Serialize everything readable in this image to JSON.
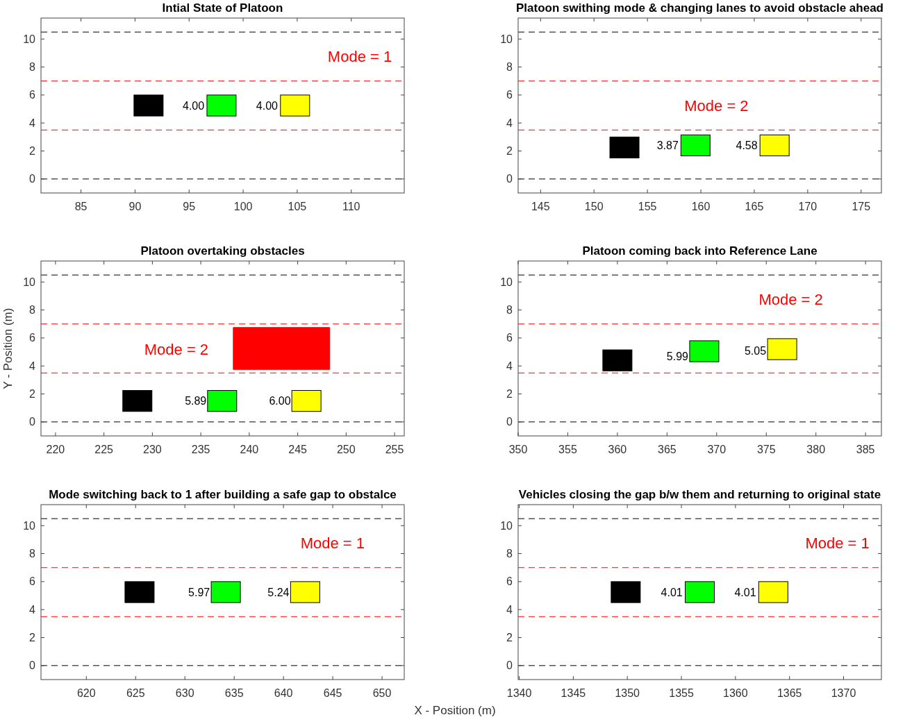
{
  "chart_data": [
    {
      "type": "bar",
      "title": "Intial State of Platoon",
      "xlim": [
        81.3,
        114.9
      ],
      "xticks": [
        85,
        90,
        95,
        100,
        105,
        110
      ],
      "ylim": [
        -1,
        11.5
      ],
      "yticks": [
        0,
        2,
        4,
        6,
        8,
        10
      ],
      "series": [
        {
          "color": "#000000",
          "x": [
            91.25
          ],
          "base": [
            4.5
          ],
          "values": [
            1.5
          ]
        },
        {
          "color": "#00ff00",
          "x": [
            98
          ],
          "base": [
            4.5
          ],
          "values": [
            1.5
          ]
        },
        {
          "color": "#ffff00",
          "x": [
            104.8
          ],
          "base": [
            4.5
          ],
          "values": [
            1.5
          ]
        }
      ],
      "ref_lines": [
        {
          "axis": "y",
          "value": 0,
          "color": "#000000",
          "line_style": "dashed"
        },
        {
          "axis": "y",
          "value": 3.5,
          "color": "#ff0000",
          "line_style": "dashed"
        },
        {
          "axis": "y",
          "value": 7,
          "color": "#ff0000",
          "line_style": "dashed"
        },
        {
          "axis": "y",
          "value": 10.5,
          "color": "#000000",
          "line_style": "dashed"
        }
      ],
      "annotations": [
        "Mode = 1",
        {
          "text": "4.00",
          "x": 96.6,
          "y": 5.25
        },
        {
          "text": "4.00",
          "x": 103.4,
          "y": 5.25
        }
      ]
    },
    {
      "type": "bar",
      "title": "Platoon swithing mode  & changing lanes to avoid obstacle ahead",
      "xlim": [
        142.9,
        176.9
      ],
      "xticks": [
        145,
        150,
        155,
        160,
        165,
        170,
        175
      ],
      "ylim": [
        -1,
        11.5
      ],
      "yticks": [
        0,
        2,
        4,
        6,
        8,
        10
      ],
      "series": [
        {
          "color": "#000000",
          "x": [
            152.85
          ],
          "base": [
            1.5
          ],
          "values": [
            1.5
          ]
        },
        {
          "color": "#00ff00",
          "x": [
            159.5
          ],
          "base": [
            1.65
          ],
          "values": [
            1.5
          ]
        },
        {
          "color": "#ffff00",
          "x": [
            166.9
          ],
          "base": [
            1.65
          ],
          "values": [
            1.5
          ]
        }
      ],
      "ref_lines": [
        {
          "axis": "y",
          "value": 0,
          "color": "#000000",
          "line_style": "dashed"
        },
        {
          "axis": "y",
          "value": 3.5,
          "color": "#ff0000",
          "line_style": "dashed"
        },
        {
          "axis": "y",
          "value": 7,
          "color": "#ff0000",
          "line_style": "dashed"
        },
        {
          "axis": "y",
          "value": 10.5,
          "color": "#000000",
          "line_style": "dashed"
        }
      ],
      "annotations": [
        "Mode = 2",
        {
          "text": "3.87",
          "x": 158.1,
          "y": 2.4
        },
        {
          "text": "4.58",
          "x": 165.5,
          "y": 2.4
        }
      ]
    },
    {
      "type": "bar",
      "title": "Platoon overtaking obstacles",
      "ylabel": "Y - Position (m)",
      "xlim": [
        218.5,
        256
      ],
      "xticks": [
        220,
        225,
        230,
        235,
        240,
        245,
        250,
        255
      ],
      "ylim": [
        -1,
        11.5
      ],
      "yticks": [
        0,
        2,
        4,
        6,
        8,
        10
      ],
      "series": [
        {
          "color": "#000000",
          "x": [
            228.45
          ],
          "base": [
            0.75
          ],
          "values": [
            1.5
          ]
        },
        {
          "color": "#00ff00",
          "x": [
            237.2
          ],
          "base": [
            0.75
          ],
          "values": [
            1.5
          ]
        },
        {
          "color": "#ffff00",
          "x": [
            245.9
          ],
          "base": [
            0.75
          ],
          "values": [
            1.5
          ]
        },
        {
          "type": "area",
          "color": "#ff0000",
          "x": [
            238.35,
            238.35,
            248.3,
            248.3
          ],
          "values": [
            3.75,
            6.75,
            6.75,
            3.75
          ]
        }
      ],
      "ref_lines": [
        {
          "axis": "y",
          "value": 0,
          "color": "#000000",
          "line_style": "dashed"
        },
        {
          "axis": "y",
          "value": 3.5,
          "color": "#ff0000",
          "line_style": "dashed"
        },
        {
          "axis": "y",
          "value": 7,
          "color": "#ff0000",
          "line_style": "dashed"
        },
        {
          "axis": "y",
          "value": 10.5,
          "color": "#000000",
          "line_style": "dashed"
        }
      ],
      "annotations": [
        "Mode = 2",
        {
          "text": "5.89",
          "x": 235.8,
          "y": 1.5
        },
        {
          "text": "6.00",
          "x": 244.5,
          "y": 1.5
        }
      ]
    },
    {
      "type": "bar",
      "title": "Platoon coming back into Reference Lane",
      "xlim": [
        350,
        386.6
      ],
      "xticks": [
        350,
        355,
        360,
        365,
        370,
        375,
        380,
        385
      ],
      "ylim": [
        -1,
        11.5
      ],
      "yticks": [
        0,
        2,
        4,
        6,
        8,
        10
      ],
      "series": [
        {
          "color": "#000000",
          "x": [
            360
          ],
          "base": [
            3.65
          ],
          "values": [
            1.5
          ]
        },
        {
          "color": "#00ff00",
          "x": [
            368.75
          ],
          "base": [
            4.3
          ],
          "values": [
            1.5
          ]
        },
        {
          "color": "#ffff00",
          "x": [
            376.6
          ],
          "base": [
            4.45
          ],
          "values": [
            1.5
          ]
        }
      ],
      "ref_lines": [
        {
          "axis": "y",
          "value": 0,
          "color": "#000000",
          "line_style": "dashed"
        },
        {
          "axis": "y",
          "value": 3.5,
          "color": "#ff0000",
          "line_style": "dashed"
        },
        {
          "axis": "y",
          "value": 7,
          "color": "#ff0000",
          "line_style": "dashed"
        },
        {
          "axis": "y",
          "value": 10.5,
          "color": "#000000",
          "line_style": "dashed"
        }
      ],
      "annotations": [
        "Mode = 2",
        {
          "text": "5.99",
          "x": 367.35,
          "y": 4.7
        },
        {
          "text": "5.05",
          "x": 375.2,
          "y": 5.1
        }
      ]
    },
    {
      "type": "bar",
      "title": "Mode switching back to 1 after building a safe gap to obstalce",
      "xlabel": "X - Position (m)",
      "xlim": [
        615.4,
        652.25
      ],
      "xticks": [
        620,
        625,
        630,
        635,
        640,
        645,
        650
      ],
      "ylim": [
        -1,
        11.5
      ],
      "yticks": [
        0,
        2,
        4,
        6,
        8,
        10
      ],
      "series": [
        {
          "color": "#000000",
          "x": [
            625.4
          ],
          "base": [
            4.5
          ],
          "values": [
            1.5
          ]
        },
        {
          "color": "#00ff00",
          "x": [
            634.15
          ],
          "base": [
            4.5
          ],
          "values": [
            1.5
          ]
        },
        {
          "color": "#ffff00",
          "x": [
            642.2
          ],
          "base": [
            4.5
          ],
          "values": [
            1.5
          ]
        }
      ],
      "ref_lines": [
        {
          "axis": "y",
          "value": 0,
          "color": "#000000",
          "line_style": "dashed"
        },
        {
          "axis": "y",
          "value": 3.5,
          "color": "#ff0000",
          "line_style": "dashed"
        },
        {
          "axis": "y",
          "value": 7,
          "color": "#ff0000",
          "line_style": "dashed"
        },
        {
          "axis": "y",
          "value": 10.5,
          "color": "#000000",
          "line_style": "dashed"
        }
      ],
      "annotations": [
        "Mode = 1",
        {
          "text": "5.97",
          "x": 632.75,
          "y": 5.25
        },
        {
          "text": "5.24",
          "x": 640.8,
          "y": 5.25
        }
      ]
    },
    {
      "type": "bar",
      "title": "Vehicles closing the gap b/w them and returning to original state",
      "xlim": [
        1339.9,
        1373.5
      ],
      "xticks": [
        1340,
        1345,
        1350,
        1355,
        1360,
        1365,
        1370
      ],
      "ylim": [
        -1,
        11.5
      ],
      "yticks": [
        0,
        2,
        4,
        6,
        8,
        10
      ],
      "series": [
        {
          "color": "#000000",
          "x": [
            1349.85
          ],
          "base": [
            4.5
          ],
          "values": [
            1.5
          ]
        },
        {
          "color": "#00ff00",
          "x": [
            1356.7
          ],
          "base": [
            4.5
          ],
          "values": [
            1.5
          ]
        },
        {
          "color": "#ffff00",
          "x": [
            1363.5
          ],
          "base": [
            4.5
          ],
          "values": [
            1.5
          ]
        }
      ],
      "ref_lines": [
        {
          "axis": "y",
          "value": 0,
          "color": "#000000",
          "line_style": "dashed"
        },
        {
          "axis": "y",
          "value": 3.5,
          "color": "#ff0000",
          "line_style": "dashed"
        },
        {
          "axis": "y",
          "value": 7,
          "color": "#ff0000",
          "line_style": "dashed"
        },
        {
          "axis": "y",
          "value": 10.5,
          "color": "#000000",
          "line_style": "dashed"
        }
      ],
      "annotations": [
        "Mode = 1",
        {
          "text": "4.01",
          "x": 1355.3,
          "y": 5.25
        },
        {
          "text": "4.01",
          "x": 1362.1,
          "y": 5.25
        }
      ]
    }
  ]
}
